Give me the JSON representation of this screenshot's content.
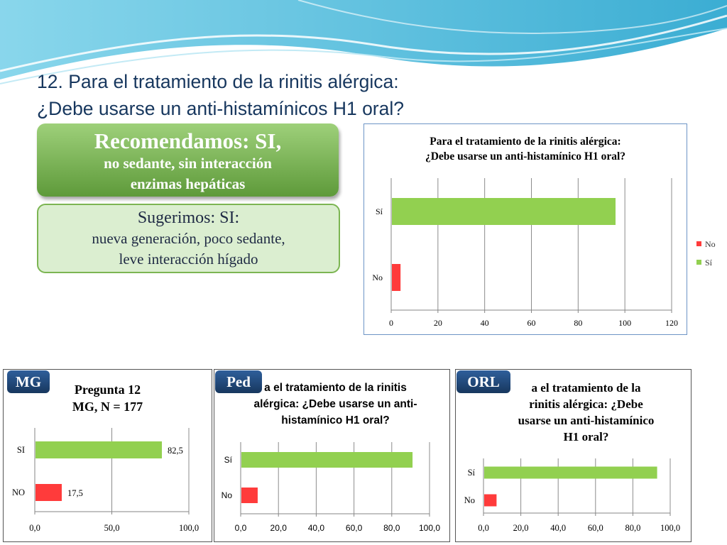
{
  "slide": {
    "title_line1": "12. Para el tratamiento de la rinitis alérgica:",
    "title_line2": "¿Debe usarse un anti-histamínicos H1 oral?",
    "recommend": {
      "heading": "Recomendamos: SI,",
      "line1": "no sedante, sin interacción",
      "line2": "enzimas hepáticas"
    },
    "suggest": {
      "heading": "Sugerimos: SI:",
      "line1": "nueva generación, poco sedante,",
      "line2": "leve interacción hígado"
    }
  },
  "colors": {
    "si": "#92d050",
    "no": "#ff3b3b",
    "title": "#17375e",
    "tag": "#1f497d"
  },
  "chart_data": [
    {
      "id": "main",
      "type": "bar",
      "orientation": "horizontal",
      "title_lines": [
        "Para el tratamiento de la rinitis alérgica:",
        "¿Debe usarse un anti-histamínico H1 oral?"
      ],
      "categories": [
        "Sí",
        "No"
      ],
      "values": [
        96,
        4
      ],
      "xlim": [
        0,
        120
      ],
      "xticks": [
        "0",
        "20",
        "40",
        "60",
        "80",
        "100",
        "120"
      ],
      "grid": true,
      "legend": [
        "No",
        "Sí"
      ],
      "legend_position": "right"
    },
    {
      "id": "mg",
      "tag": "MG",
      "type": "bar",
      "orientation": "horizontal",
      "title_lines": [
        "Pregunta 12",
        "MG, N = 177"
      ],
      "categories": [
        "SI",
        "NO"
      ],
      "values": [
        82.5,
        17.5
      ],
      "data_labels": [
        "82,5",
        "17,5"
      ],
      "xlim": [
        0,
        100
      ],
      "xticks": [
        "0,0",
        "50,0",
        "100,0"
      ],
      "grid": true
    },
    {
      "id": "ped",
      "tag": "Ped",
      "type": "bar",
      "orientation": "horizontal",
      "title_lines": [
        "a el tratamiento de la rinitis",
        "alérgica: ¿Debe usarse un anti-",
        "histamínico H1 oral?"
      ],
      "categories": [
        "Sí",
        "No"
      ],
      "values": [
        91,
        9
      ],
      "xlim": [
        0,
        100
      ],
      "xticks": [
        "0,0",
        "20,0",
        "40,0",
        "60,0",
        "80,0",
        "100,0"
      ],
      "grid": true
    },
    {
      "id": "orl",
      "tag": "ORL",
      "type": "bar",
      "orientation": "horizontal",
      "title_lines": [
        "a el tratamiento de la",
        "rinitis alérgica: ¿Debe",
        "usarse un anti-histamínico",
        "H1 oral?"
      ],
      "categories": [
        "Sí",
        "No"
      ],
      "values": [
        93,
        7
      ],
      "xlim": [
        0,
        100
      ],
      "xticks": [
        "0,0",
        "20,0",
        "40,0",
        "60,0",
        "80,0",
        "100,0"
      ],
      "grid": true
    }
  ]
}
